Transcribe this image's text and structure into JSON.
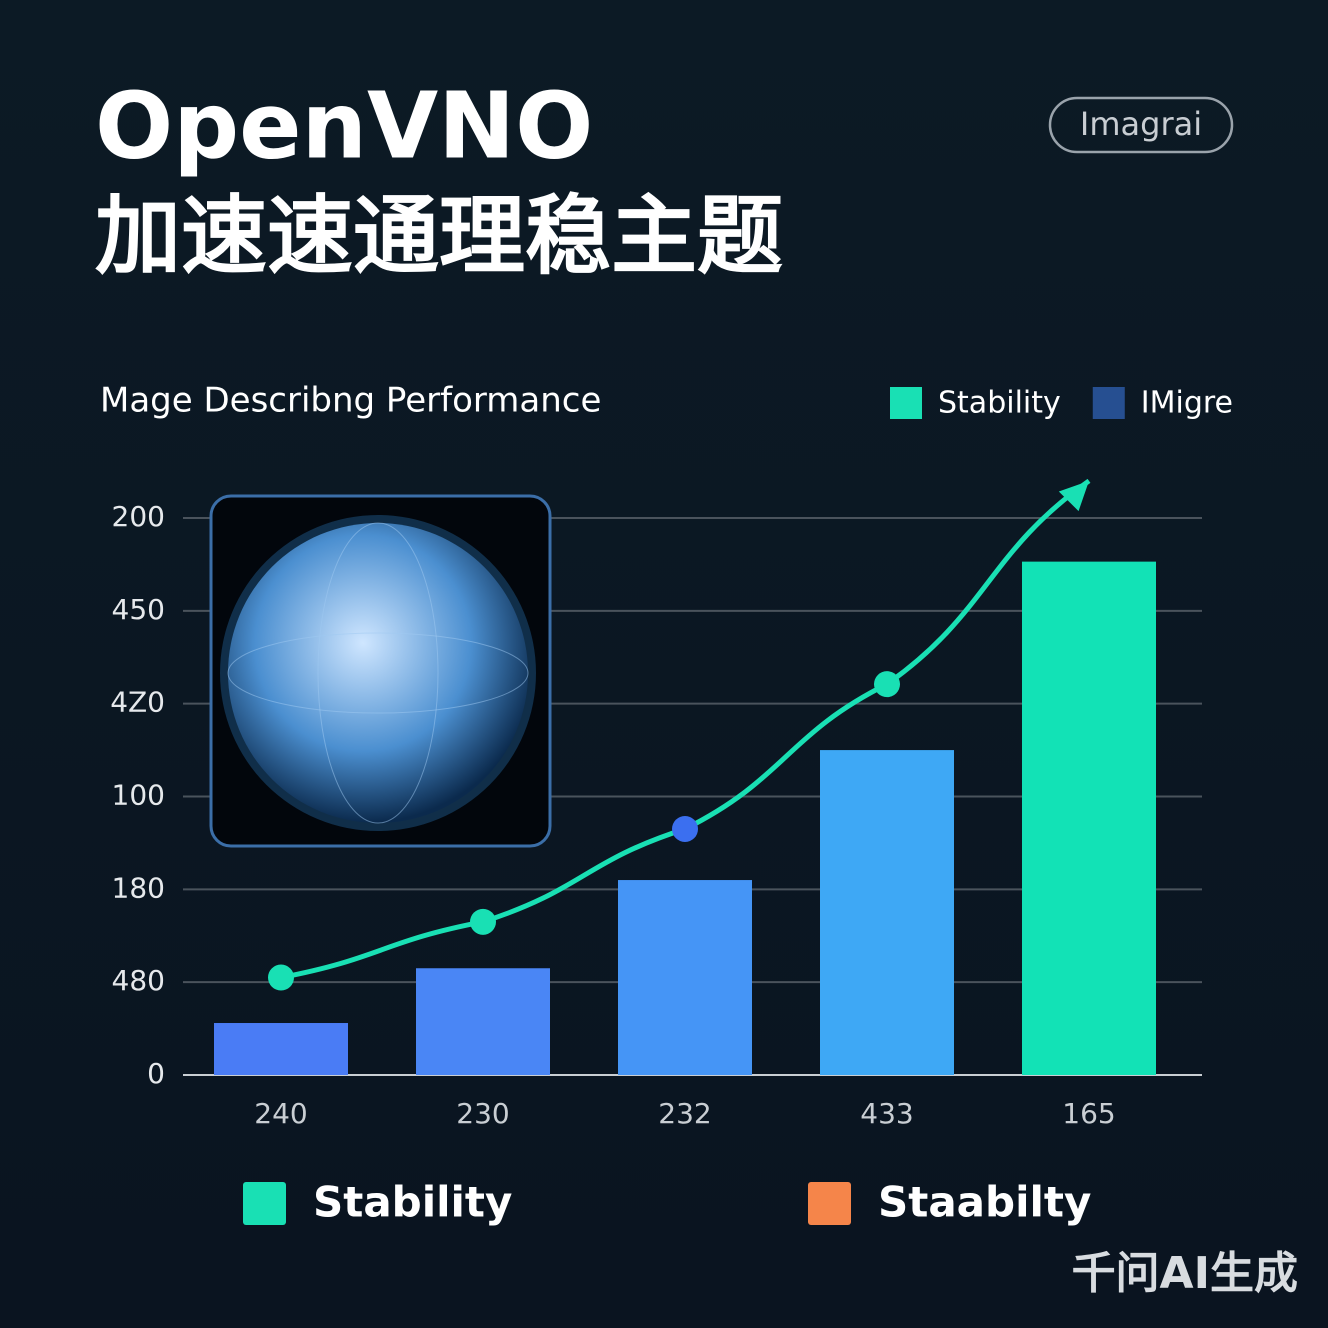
{
  "header": {
    "title": "OpenVNO",
    "subtitle": "加速速通理稳主题",
    "badge": "Imagrai"
  },
  "chart_data": {
    "type": "bar",
    "title": "Mage Describng Performance",
    "categories": [
      "240",
      "230",
      "232",
      "433",
      "165"
    ],
    "ylim": [
      0,
      6
    ],
    "yticks": [
      0,
      {
        "value": 1,
        "label": "480"
      },
      {
        "value": 2,
        "label": "180"
      },
      {
        "value": 3,
        "label": "100"
      },
      {
        "value": 4,
        "label": "4Z0"
      },
      {
        "value": 5,
        "label": "450"
      },
      {
        "value": 6,
        "label": "200"
      }
    ],
    "grid": true,
    "series": [
      {
        "name": "Stability",
        "type": "line",
        "color": "#19e0b4",
        "values": [
          1.05,
          1.65,
          2.65,
          4.21,
          6.4
        ],
        "marker_colors": [
          "#19e0b4",
          "#19e0b4",
          "#3b6ff0",
          "#19e0b4",
          "#19e0b4"
        ]
      },
      {
        "name": "IMigre",
        "type": "bar",
        "color": "#264f91",
        "values": [
          0.56,
          1.15,
          2.1,
          3.5,
          5.53
        ],
        "colors": [
          "#4a7cf5",
          "#4a86f5",
          "#4595f6",
          "#3ea8f5",
          "#12e2b6"
        ]
      }
    ],
    "legend_bottom": [
      {
        "name": "Stability",
        "color": "#19e0b4"
      },
      {
        "name": "Staabilty",
        "color": "#f5854a"
      }
    ]
  },
  "watermark": "千问AI生成"
}
